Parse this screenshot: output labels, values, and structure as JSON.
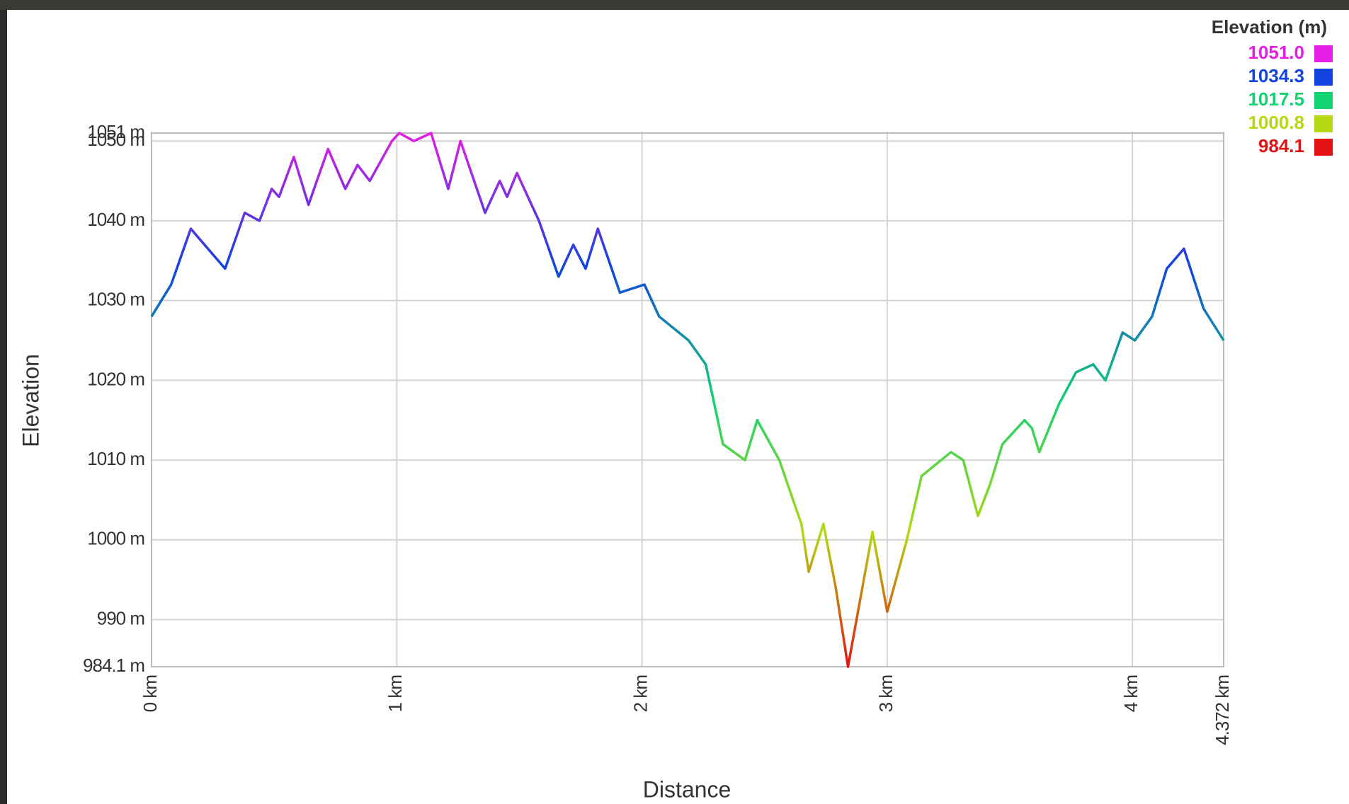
{
  "chart_data": {
    "type": "line",
    "x_label": "Distance",
    "y_label": "Elevation",
    "x": [
      0,
      0.08,
      0.16,
      0.3,
      0.38,
      0.44,
      0.49,
      0.52,
      0.58,
      0.64,
      0.72,
      0.79,
      0.84,
      0.89,
      0.98,
      1.01,
      1.07,
      1.14,
      1.21,
      1.26,
      1.36,
      1.42,
      1.45,
      1.49,
      1.58,
      1.66,
      1.72,
      1.77,
      1.82,
      1.91,
      2.01,
      2.07,
      2.19,
      2.26,
      2.33,
      2.42,
      2.47,
      2.56,
      2.65,
      2.68,
      2.74,
      2.79,
      2.84,
      2.94,
      3.0,
      3.08,
      3.14,
      3.26,
      3.31,
      3.37,
      3.42,
      3.47,
      3.56,
      3.59,
      3.62,
      3.7,
      3.77,
      3.84,
      3.89,
      3.96,
      4.01,
      4.08,
      4.14,
      4.21,
      4.29,
      4.372
    ],
    "values": [
      1028,
      1032,
      1039,
      1034,
      1041,
      1040,
      1044,
      1043,
      1048,
      1042,
      1049,
      1044,
      1047,
      1045,
      1050,
      1051,
      1050,
      1051,
      1044,
      1050,
      1041,
      1045,
      1043,
      1046,
      1040,
      1033,
      1037,
      1034,
      1039,
      1031,
      1032,
      1028,
      1025,
      1022,
      1012,
      1010,
      1015,
      1010,
      1002,
      996,
      1002,
      994,
      984.1,
      1001,
      991,
      1000,
      1008,
      1011,
      1010,
      1003,
      1007,
      1012,
      1015,
      1014,
      1011,
      1017,
      1021,
      1022,
      1020,
      1026,
      1025,
      1028,
      1034,
      1036.5,
      1029,
      1025
    ],
    "xlim": [
      0,
      4.372
    ],
    "ylim": [
      984.1,
      1051
    ],
    "xticks": [
      {
        "value": 0,
        "label": "0 km"
      },
      {
        "value": 1,
        "label": "1 km"
      },
      {
        "value": 2,
        "label": "2 km"
      },
      {
        "value": 3,
        "label": "3 km"
      },
      {
        "value": 4,
        "label": "4 km"
      },
      {
        "value": 4.372,
        "label": "4.372 km"
      }
    ],
    "yticks": [
      {
        "value": 984.1,
        "label": "984.1 m"
      },
      {
        "value": 990,
        "label": "990 m"
      },
      {
        "value": 1000,
        "label": "1000 m"
      },
      {
        "value": 1010,
        "label": "1010 m"
      },
      {
        "value": 1020,
        "label": "1020 m"
      },
      {
        "value": 1030,
        "label": "1030 m"
      },
      {
        "value": 1040,
        "label": "1040 m"
      },
      {
        "value": 1050,
        "label": "1050 m"
      },
      {
        "value": 1051,
        "label": "1051 m"
      }
    ],
    "grid": true,
    "color_scale": {
      "title": "Elevation (m)",
      "values": [
        1051,
        1034.3,
        1017.5,
        1000.8,
        984.1
      ],
      "value_labels": [
        "1051.0",
        "1034.3",
        "1017.5",
        "1000.8",
        "984.1"
      ],
      "colors": [
        "#e41ee4",
        "#1243e0",
        "#12d273",
        "#b4d812",
        "#e41212"
      ]
    }
  }
}
